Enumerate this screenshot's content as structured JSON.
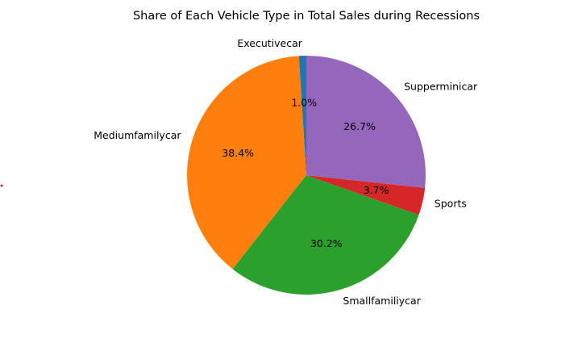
{
  "chart_data": {
    "type": "pie",
    "title": "Share of Each Vehicle Type in Total Sales during Recessions",
    "start_angle_deg": 90,
    "direction": "counterclockwise",
    "slices": [
      {
        "label": "Executivecar",
        "value": 1.0,
        "pct_label": "1.0%",
        "color": "#1f77b4"
      },
      {
        "label": "Mediumfamilycar",
        "value": 38.4,
        "pct_label": "38.4%",
        "color": "#ff7f0e"
      },
      {
        "label": "Smallfamiliycar",
        "value": 30.2,
        "pct_label": "30.2%",
        "color": "#2ca02c"
      },
      {
        "label": "Sports",
        "value": 3.7,
        "pct_label": "3.7%",
        "color": "#d62728"
      },
      {
        "label": "Supperminicar",
        "value": 26.7,
        "pct_label": "26.7%",
        "color": "#9467bd"
      }
    ]
  }
}
